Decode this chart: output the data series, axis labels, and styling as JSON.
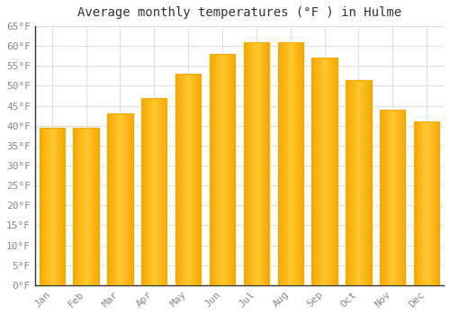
{
  "title": "Average monthly temperatures (°F ) in Hulme",
  "months": [
    "Jan",
    "Feb",
    "Mar",
    "Apr",
    "May",
    "Jun",
    "Jul",
    "Aug",
    "Sep",
    "Oct",
    "Nov",
    "Dec"
  ],
  "values": [
    39.5,
    39.5,
    43,
    47,
    53,
    58,
    61,
    61,
    57,
    51.5,
    44,
    41
  ],
  "bar_color_center": "#FFC830",
  "bar_color_edge": "#F5A800",
  "background_color": "#FFFFFF",
  "ylim": [
    0,
    65
  ],
  "yticks": [
    0,
    5,
    10,
    15,
    20,
    25,
    30,
    35,
    40,
    45,
    50,
    55,
    60,
    65
  ],
  "title_fontsize": 10,
  "tick_fontsize": 8,
  "grid_color": "#E0E0E0",
  "axis_color": "#333333",
  "bar_width": 0.75
}
